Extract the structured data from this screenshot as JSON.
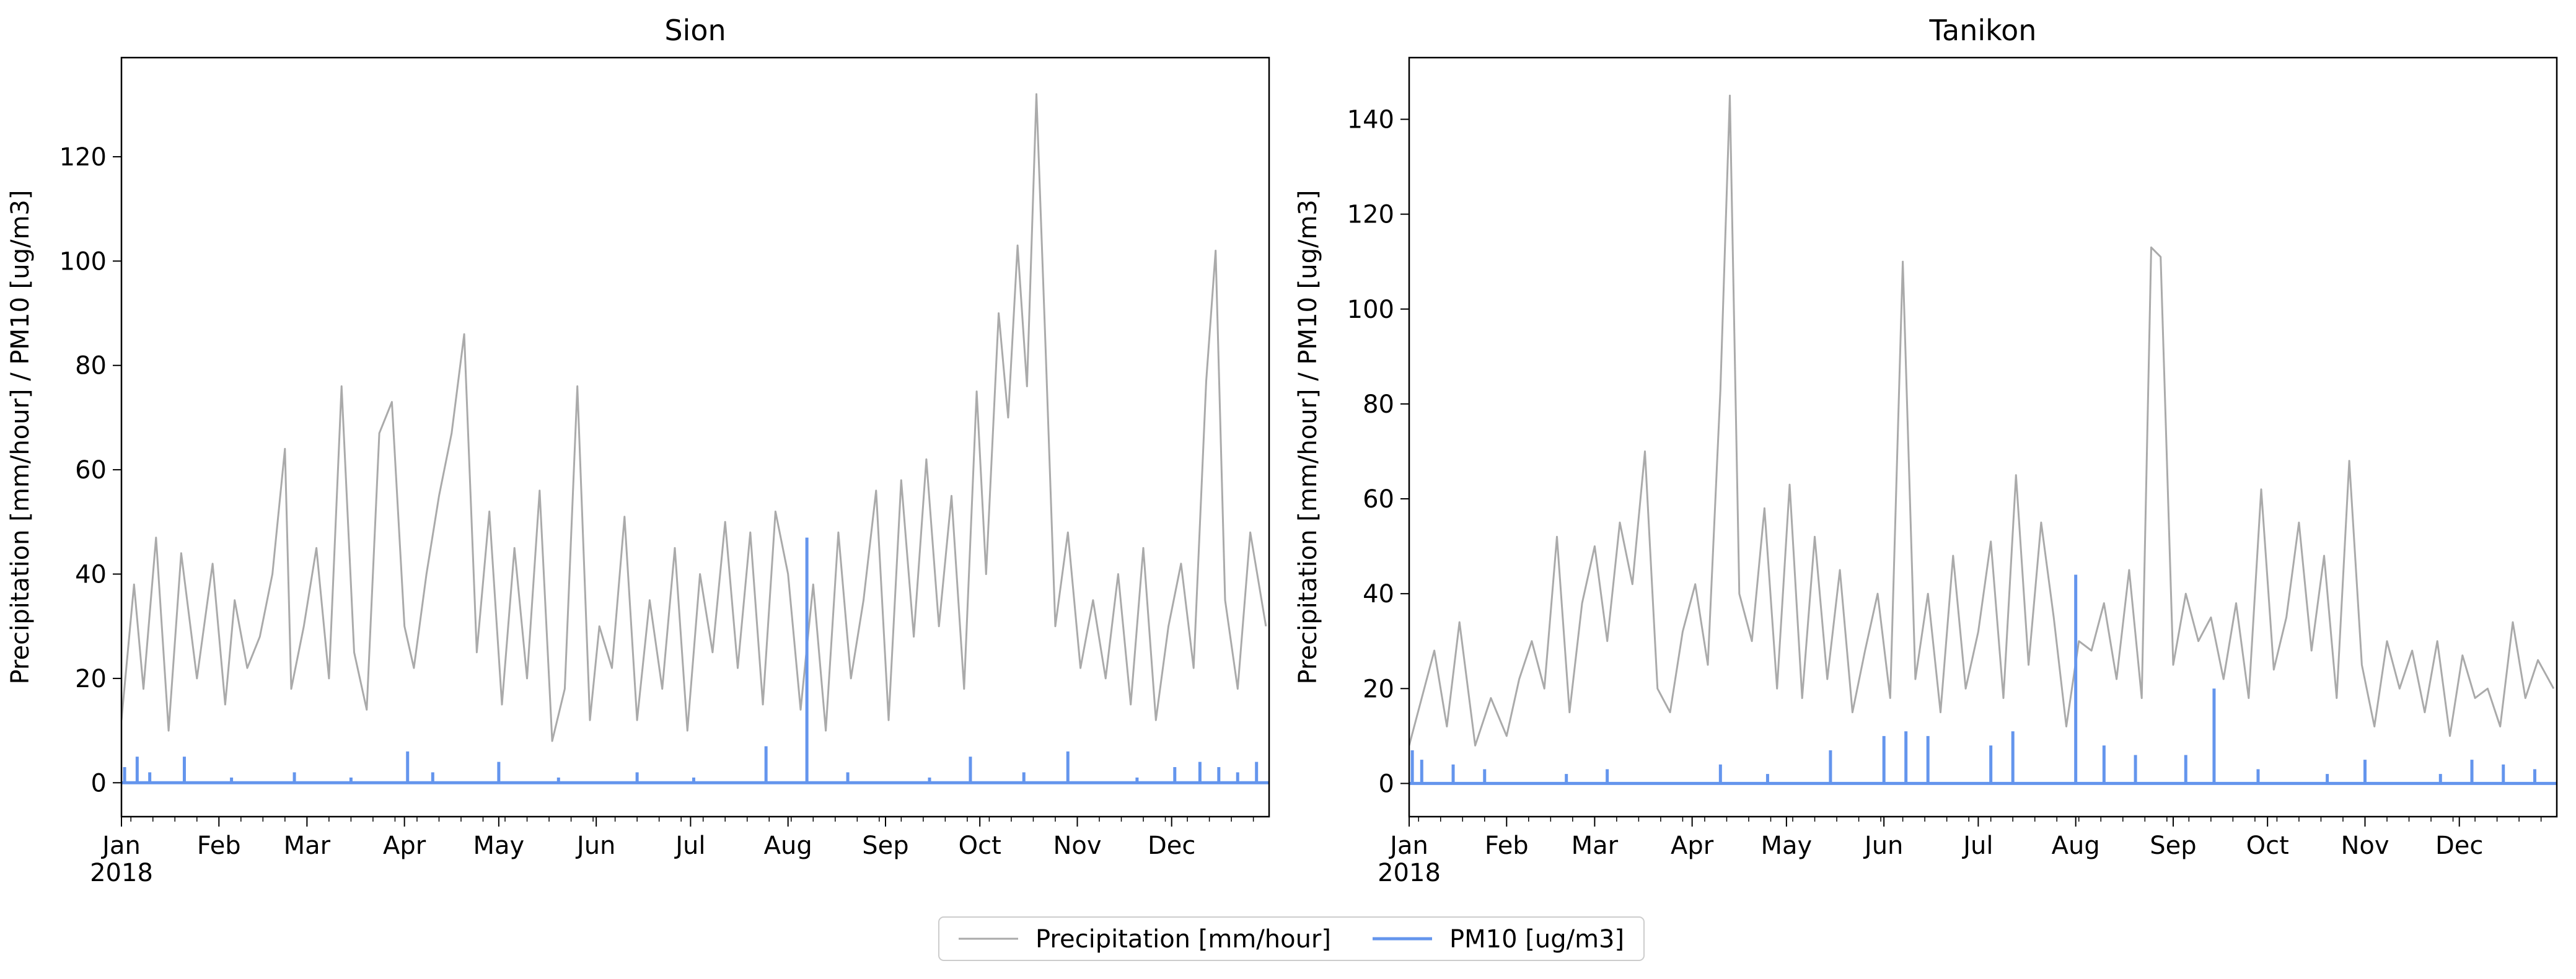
{
  "legend": {
    "placement": "bottom-center",
    "entries": [
      {
        "label": "Precipitation [mm/hour]",
        "color": "#aaaaaa"
      },
      {
        "label": "PM10 [ug/m3]",
        "color": "#6495ed"
      }
    ]
  },
  "chart_data": [
    {
      "type": "line",
      "title": "Sion",
      "ylabel": "Precipitation [mm/hour] / PM10 [ug/m3]",
      "xlabel": "",
      "year_label": "2018",
      "x_tick_labels": [
        "Jan",
        "Feb",
        "Mar",
        "Apr",
        "May",
        "Jun",
        "Jul",
        "Aug",
        "Sep",
        "Oct",
        "Nov",
        "Dec"
      ],
      "xlim": [
        "2018-01-01",
        "2018-12-31"
      ],
      "ylim": [
        -6.5,
        139
      ],
      "y_ticks": [
        0,
        20,
        40,
        60,
        80,
        100,
        120
      ],
      "grid": false,
      "series": [
        {
          "name": "Precipitation [mm/hour]",
          "color": "#aaaaaa",
          "x": [
            "2018-01-01",
            "2018-01-05",
            "2018-01-08",
            "2018-01-12",
            "2018-01-16",
            "2018-01-20",
            "2018-01-25",
            "2018-01-30",
            "2018-02-03",
            "2018-02-06",
            "2018-02-10",
            "2018-02-14",
            "2018-02-18",
            "2018-02-22",
            "2018-02-24",
            "2018-02-28",
            "2018-03-04",
            "2018-03-08",
            "2018-03-12",
            "2018-03-16",
            "2018-03-20",
            "2018-03-24",
            "2018-03-28",
            "2018-04-01",
            "2018-04-04",
            "2018-04-08",
            "2018-04-12",
            "2018-04-16",
            "2018-04-20",
            "2018-04-24",
            "2018-04-28",
            "2018-05-02",
            "2018-05-06",
            "2018-05-10",
            "2018-05-14",
            "2018-05-18",
            "2018-05-22",
            "2018-05-26",
            "2018-05-30",
            "2018-06-02",
            "2018-06-06",
            "2018-06-10",
            "2018-06-14",
            "2018-06-18",
            "2018-06-22",
            "2018-06-26",
            "2018-06-30",
            "2018-07-04",
            "2018-07-08",
            "2018-07-12",
            "2018-07-16",
            "2018-07-20",
            "2018-07-24",
            "2018-07-28",
            "2018-08-01",
            "2018-08-05",
            "2018-08-09",
            "2018-08-13",
            "2018-08-17",
            "2018-08-21",
            "2018-08-25",
            "2018-08-29",
            "2018-09-02",
            "2018-09-06",
            "2018-09-10",
            "2018-09-14",
            "2018-09-18",
            "2018-09-22",
            "2018-09-26",
            "2018-09-30",
            "2018-10-03",
            "2018-10-07",
            "2018-10-10",
            "2018-10-13",
            "2018-10-16",
            "2018-10-19",
            "2018-10-22",
            "2018-10-25",
            "2018-10-29",
            "2018-11-02",
            "2018-11-06",
            "2018-11-10",
            "2018-11-14",
            "2018-11-18",
            "2018-11-22",
            "2018-11-26",
            "2018-11-30",
            "2018-12-04",
            "2018-12-08",
            "2018-12-12",
            "2018-12-15",
            "2018-12-18",
            "2018-12-22",
            "2018-12-26",
            "2018-12-31"
          ],
          "values": [
            12,
            38,
            18,
            47,
            10,
            44,
            20,
            42,
            15,
            35,
            22,
            28,
            40,
            64,
            18,
            30,
            45,
            20,
            76,
            25,
            14,
            67,
            73,
            30,
            22,
            40,
            55,
            67,
            86,
            25,
            52,
            15,
            45,
            20,
            56,
            8,
            18,
            76,
            12,
            30,
            22,
            51,
            12,
            35,
            18,
            45,
            10,
            40,
            25,
            50,
            22,
            48,
            15,
            52,
            40,
            14,
            38,
            10,
            48,
            20,
            35,
            56,
            12,
            58,
            28,
            62,
            30,
            55,
            18,
            75,
            40,
            90,
            70,
            103,
            76,
            132,
            82,
            30,
            48,
            22,
            35,
            20,
            40,
            15,
            45,
            12,
            30,
            42,
            22,
            77,
            102,
            35,
            18,
            48,
            30
          ]
        },
        {
          "name": "PM10 [ug/m3]",
          "color": "#6495ed",
          "x": [
            "2018-01-02",
            "2018-01-06",
            "2018-01-10",
            "2018-01-21",
            "2018-02-05",
            "2018-02-25",
            "2018-03-15",
            "2018-04-02",
            "2018-04-10",
            "2018-05-01",
            "2018-05-20",
            "2018-06-14",
            "2018-07-02",
            "2018-07-25",
            "2018-08-07",
            "2018-08-20",
            "2018-09-15",
            "2018-09-28",
            "2018-10-15",
            "2018-10-29",
            "2018-11-20",
            "2018-12-02",
            "2018-12-10",
            "2018-12-16",
            "2018-12-22",
            "2018-12-28"
          ],
          "values": [
            3,
            5,
            2,
            5,
            1,
            2,
            1,
            6,
            2,
            4,
            1,
            2,
            1,
            7,
            47,
            2,
            1,
            5,
            2,
            6,
            1,
            3,
            4,
            3,
            2,
            4
          ]
        }
      ]
    },
    {
      "type": "line",
      "title": "Tanikon",
      "ylabel": "Precipitation [mm/hour] / PM10 [ug/m3]",
      "xlabel": "",
      "year_label": "2018",
      "x_tick_labels": [
        "Jan",
        "Feb",
        "Mar",
        "Apr",
        "May",
        "Jun",
        "Jul",
        "Aug",
        "Sep",
        "Oct",
        "Nov",
        "Dec"
      ],
      "xlim": [
        "2018-01-01",
        "2018-12-31"
      ],
      "ylim": [
        -7,
        153
      ],
      "y_ticks": [
        0,
        20,
        40,
        60,
        80,
        100,
        120,
        140
      ],
      "grid": false,
      "series": [
        {
          "name": "Precipitation [mm/hour]",
          "color": "#aaaaaa",
          "x": [
            "2018-01-01",
            "2018-01-05",
            "2018-01-09",
            "2018-01-13",
            "2018-01-17",
            "2018-01-22",
            "2018-01-27",
            "2018-02-01",
            "2018-02-05",
            "2018-02-09",
            "2018-02-13",
            "2018-02-17",
            "2018-02-21",
            "2018-02-25",
            "2018-03-01",
            "2018-03-05",
            "2018-03-09",
            "2018-03-13",
            "2018-03-17",
            "2018-03-21",
            "2018-03-25",
            "2018-03-29",
            "2018-04-02",
            "2018-04-06",
            "2018-04-10",
            "2018-04-13",
            "2018-04-16",
            "2018-04-20",
            "2018-04-24",
            "2018-04-28",
            "2018-05-02",
            "2018-05-06",
            "2018-05-10",
            "2018-05-14",
            "2018-05-18",
            "2018-05-22",
            "2018-05-26",
            "2018-05-30",
            "2018-06-03",
            "2018-06-07",
            "2018-06-11",
            "2018-06-15",
            "2018-06-19",
            "2018-06-23",
            "2018-06-27",
            "2018-07-01",
            "2018-07-05",
            "2018-07-09",
            "2018-07-13",
            "2018-07-17",
            "2018-07-21",
            "2018-07-25",
            "2018-07-29",
            "2018-08-02",
            "2018-08-06",
            "2018-08-10",
            "2018-08-14",
            "2018-08-18",
            "2018-08-22",
            "2018-08-25",
            "2018-08-28",
            "2018-09-01",
            "2018-09-05",
            "2018-09-09",
            "2018-09-13",
            "2018-09-17",
            "2018-09-21",
            "2018-09-25",
            "2018-09-29",
            "2018-10-03",
            "2018-10-07",
            "2018-10-11",
            "2018-10-15",
            "2018-10-19",
            "2018-10-23",
            "2018-10-27",
            "2018-10-31",
            "2018-11-04",
            "2018-11-08",
            "2018-11-12",
            "2018-11-16",
            "2018-11-20",
            "2018-11-24",
            "2018-11-28",
            "2018-12-02",
            "2018-12-06",
            "2018-12-10",
            "2018-12-14",
            "2018-12-18",
            "2018-12-22",
            "2018-12-26",
            "2018-12-31"
          ],
          "values": [
            8,
            18,
            28,
            12,
            34,
            8,
            18,
            10,
            22,
            30,
            20,
            52,
            15,
            38,
            50,
            30,
            55,
            42,
            70,
            20,
            15,
            32,
            42,
            25,
            83,
            145,
            40,
            30,
            58,
            20,
            63,
            18,
            52,
            22,
            45,
            15,
            28,
            40,
            18,
            110,
            22,
            40,
            15,
            48,
            20,
            32,
            51,
            18,
            65,
            25,
            55,
            35,
            12,
            30,
            28,
            38,
            22,
            45,
            18,
            113,
            111,
            25,
            40,
            30,
            35,
            22,
            38,
            18,
            62,
            24,
            35,
            55,
            28,
            48,
            18,
            68,
            25,
            12,
            30,
            20,
            28,
            15,
            30,
            10,
            27,
            18,
            20,
            12,
            34,
            18,
            26,
            20
          ]
        },
        {
          "name": "PM10 [ug/m3]",
          "color": "#6495ed",
          "x": [
            "2018-01-02",
            "2018-01-05",
            "2018-01-15",
            "2018-01-25",
            "2018-02-20",
            "2018-03-05",
            "2018-04-10",
            "2018-04-25",
            "2018-05-15",
            "2018-06-01",
            "2018-06-08",
            "2018-06-15",
            "2018-07-05",
            "2018-07-12",
            "2018-08-01",
            "2018-08-10",
            "2018-08-20",
            "2018-09-05",
            "2018-09-14",
            "2018-09-28",
            "2018-10-20",
            "2018-11-01",
            "2018-11-25",
            "2018-12-05",
            "2018-12-15",
            "2018-12-25"
          ],
          "values": [
            7,
            5,
            4,
            3,
            2,
            3,
            4,
            2,
            7,
            10,
            11,
            10,
            8,
            11,
            44,
            8,
            6,
            6,
            20,
            3,
            2,
            5,
            2,
            5,
            4,
            3
          ]
        }
      ]
    }
  ]
}
